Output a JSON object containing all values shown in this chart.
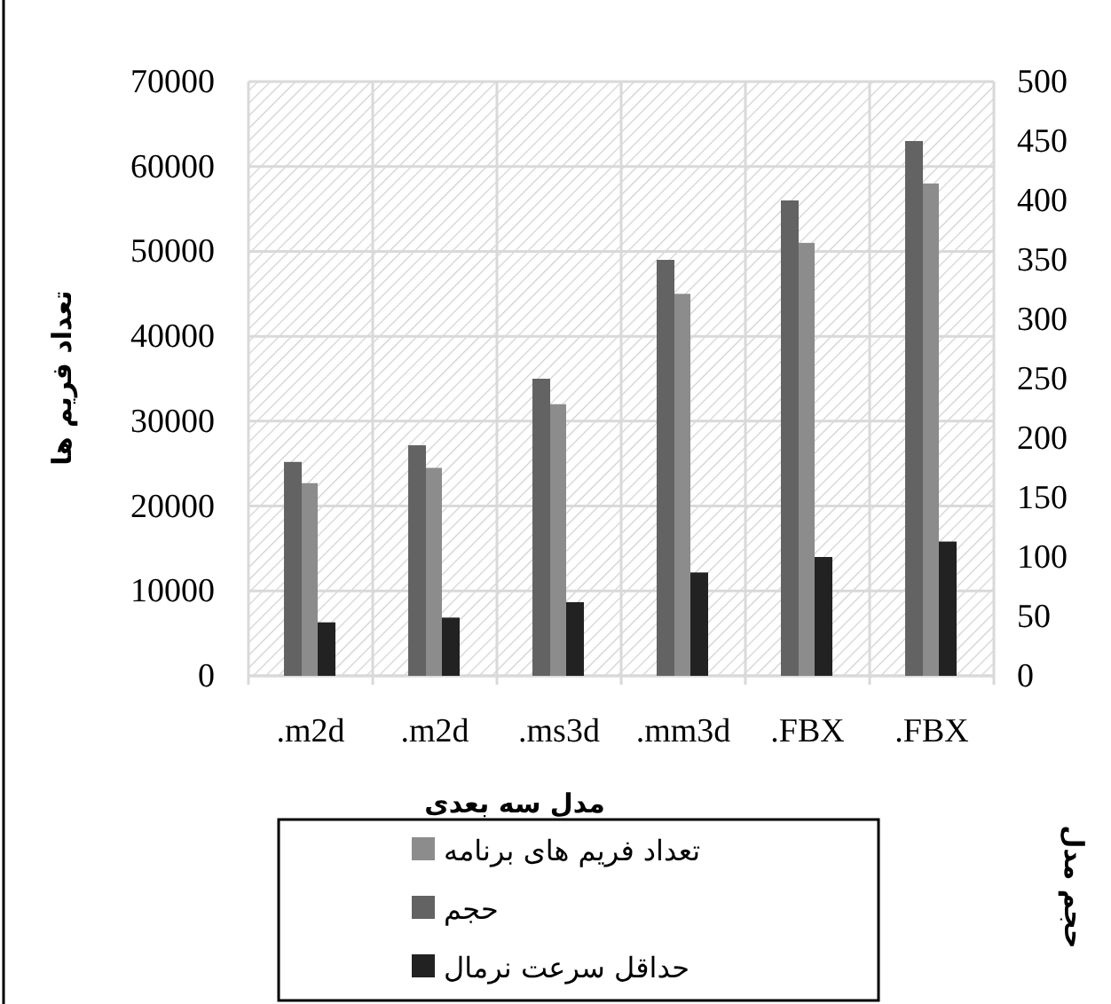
{
  "chart_data": {
    "type": "bar",
    "xlabel": "مدل سه بعدی",
    "ylabel": "تعداد فریم ها",
    "y2label": "حجم مدل",
    "categories": [
      ".m2d",
      ".m2d",
      ".ms3d",
      ".mm3d",
      ".FBX",
      ".FBX"
    ],
    "series": [
      {
        "name": "تعداد فریم های برنامه",
        "color": "#8c8c8c",
        "values": [
          22700,
          24500,
          32000,
          45000,
          51000,
          58000
        ]
      },
      {
        "name": "حجم",
        "color": "#636363",
        "axis": "y2",
        "values": [
          180,
          194,
          250,
          350,
          400,
          450
        ]
      },
      {
        "name": "حداقل سرعت نرمال",
        "color": "#222222",
        "axis": "y2",
        "values": [
          45,
          49,
          62,
          87,
          100,
          113
        ]
      }
    ],
    "ylim": [
      0,
      70000
    ],
    "yticks": [
      0,
      10000,
      20000,
      30000,
      40000,
      50000,
      60000,
      70000
    ],
    "y2lim": [
      0,
      500
    ],
    "y2ticks": [
      0,
      50,
      100,
      150,
      200,
      250,
      300,
      350,
      400,
      450,
      500
    ],
    "grid": true,
    "legend": "bottom"
  }
}
